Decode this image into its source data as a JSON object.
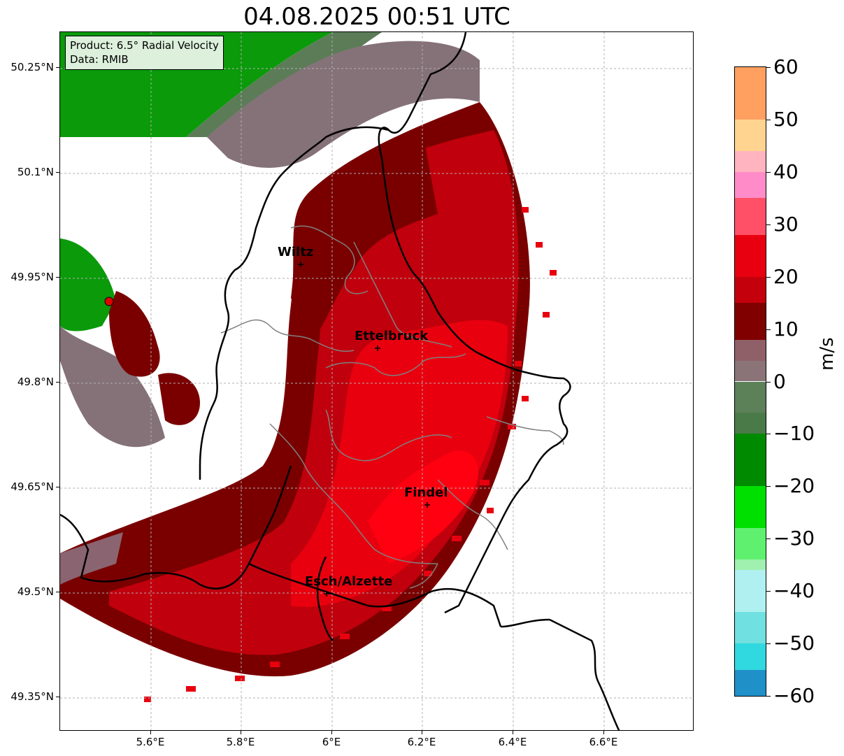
{
  "title": "04.08.2025 00:51 UTC",
  "info": {
    "product": "Product: 6.5° Radial Velocity",
    "source": "Data: RMIB"
  },
  "axes": {
    "lat_labels": [
      "50.25°N",
      "50.1°N",
      "49.95°N",
      "49.8°N",
      "49.65°N",
      "49.5°N",
      "49.35°N"
    ],
    "lon_labels": [
      "5.6°E",
      "5.8°E",
      "6°E",
      "6.2°E",
      "6.4°E",
      "6.6°E"
    ],
    "lat_range": [
      49.3,
      50.3
    ],
    "lon_range": [
      5.4,
      6.8
    ],
    "grid": true
  },
  "cities": [
    {
      "name": "Wiltz",
      "lon": 5.93,
      "lat": 49.97
    },
    {
      "name": "Ettelbruck",
      "lon": 6.1,
      "lat": 49.85
    },
    {
      "name": "Findel",
      "lon": 6.21,
      "lat": 49.63
    },
    {
      "name": "Esch/Alzette",
      "lon": 5.98,
      "lat": 49.5
    }
  ],
  "radar": {
    "name": "radar-site",
    "lon": 5.51,
    "lat": 49.92,
    "color": "#e00000"
  },
  "colorbar": {
    "unit": "m/s",
    "range": [
      -60,
      60
    ],
    "tick_labels": [
      "60",
      "50",
      "40",
      "30",
      "20",
      "10",
      "0",
      "−10",
      "−20",
      "−30",
      "−40",
      "−50",
      "−60"
    ],
    "stops": [
      {
        "from": 50,
        "to": 60,
        "color": "#ffa060"
      },
      {
        "from": 44,
        "to": 50,
        "color": "#ffd490"
      },
      {
        "from": 40,
        "to": 44,
        "color": "#ffb4c0"
      },
      {
        "from": 35,
        "to": 40,
        "color": "#ff8cc8"
      },
      {
        "from": 28,
        "to": 35,
        "color": "#ff5068"
      },
      {
        "from": 20,
        "to": 28,
        "color": "#e80010"
      },
      {
        "from": 15,
        "to": 20,
        "color": "#c4000c"
      },
      {
        "from": 8,
        "to": 15,
        "color": "#800000"
      },
      {
        "from": 4,
        "to": 8,
        "color": "#906068"
      },
      {
        "from": 0,
        "to": 4,
        "color": "#8a7478"
      },
      {
        "from": -6,
        "to": 0,
        "color": "#5c8058"
      },
      {
        "from": -10,
        "to": -6,
        "color": "#4a7a48"
      },
      {
        "from": -20,
        "to": -10,
        "color": "#008a00"
      },
      {
        "from": -28,
        "to": -20,
        "color": "#00e000"
      },
      {
        "from": -34,
        "to": -28,
        "color": "#60f070"
      },
      {
        "from": -36,
        "to": -34,
        "color": "#a0f0b0"
      },
      {
        "from": -44,
        "to": -36,
        "color": "#b0f0f0"
      },
      {
        "from": -50,
        "to": -44,
        "color": "#70e0e0"
      },
      {
        "from": -55,
        "to": -50,
        "color": "#30d8e0"
      },
      {
        "from": -60,
        "to": -55,
        "color": "#2090c8"
      }
    ]
  },
  "colors": {
    "inbound_green": "#0a9a0a",
    "gray_zero": "#857278",
    "dark_red": "#7a0000",
    "red": "#d8000c",
    "bright_red": "#f00010",
    "border": "#000000",
    "canton_border": "#808080"
  }
}
